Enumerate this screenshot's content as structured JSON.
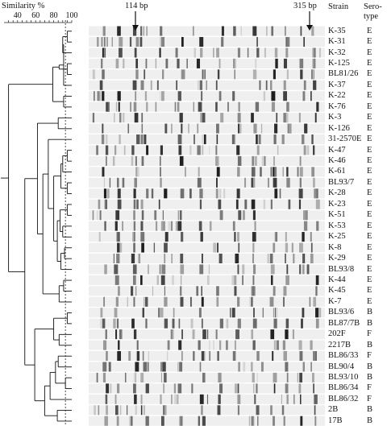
{
  "header": {
    "similarity_label": "Similarity %",
    "scale_ticks": [
      "40",
      "60",
      "80",
      "100"
    ],
    "strain_header": "Strain",
    "serotype_header_line1": "Sero-",
    "serotype_header_line2": "type",
    "marker_left": "114 bp",
    "marker_right": "315 bp"
  },
  "rows": [
    {
      "strain": "K-35",
      "serotype": "E"
    },
    {
      "strain": "K-31",
      "serotype": "E"
    },
    {
      "strain": "K-32",
      "serotype": "E"
    },
    {
      "strain": "K-125",
      "serotype": "E"
    },
    {
      "strain": "BL81/26",
      "serotype": "E"
    },
    {
      "strain": "K-37",
      "serotype": "E"
    },
    {
      "strain": "K-22",
      "serotype": "E"
    },
    {
      "strain": "K-76",
      "serotype": "E"
    },
    {
      "strain": "K-3",
      "serotype": "E"
    },
    {
      "strain": "K-126",
      "serotype": "E"
    },
    {
      "strain": "31-2570E",
      "serotype": "E"
    },
    {
      "strain": "K-47",
      "serotype": "E"
    },
    {
      "strain": "K-46",
      "serotype": "E"
    },
    {
      "strain": "K-61",
      "serotype": "E"
    },
    {
      "strain": "BL93/7",
      "serotype": "E"
    },
    {
      "strain": "K-28",
      "serotype": "E"
    },
    {
      "strain": "K-23",
      "serotype": "E"
    },
    {
      "strain": "K-51",
      "serotype": "E"
    },
    {
      "strain": "K-53",
      "serotype": "E"
    },
    {
      "strain": "K-25",
      "serotype": "E"
    },
    {
      "strain": "K-8",
      "serotype": "E"
    },
    {
      "strain": "K-29",
      "serotype": "E"
    },
    {
      "strain": "BL93/8",
      "serotype": "E"
    },
    {
      "strain": "K-44",
      "serotype": "E"
    },
    {
      "strain": "K-45",
      "serotype": "E"
    },
    {
      "strain": "K-7",
      "serotype": "E"
    },
    {
      "strain": "BL93/6",
      "serotype": "B"
    },
    {
      "strain": "BL87/7B",
      "serotype": "B"
    },
    {
      "strain": "202F",
      "serotype": "F"
    },
    {
      "strain": "2217B",
      "serotype": "B"
    },
    {
      "strain": "BL86/33",
      "serotype": "F"
    },
    {
      "strain": "BL90/4",
      "serotype": "B"
    },
    {
      "strain": "BL93/10",
      "serotype": "B"
    },
    {
      "strain": "BL86/34",
      "serotype": "F"
    },
    {
      "strain": "BL86/32",
      "serotype": "F"
    },
    {
      "strain": "2B",
      "serotype": "B"
    },
    {
      "strain": "17B",
      "serotype": "B"
    }
  ]
}
